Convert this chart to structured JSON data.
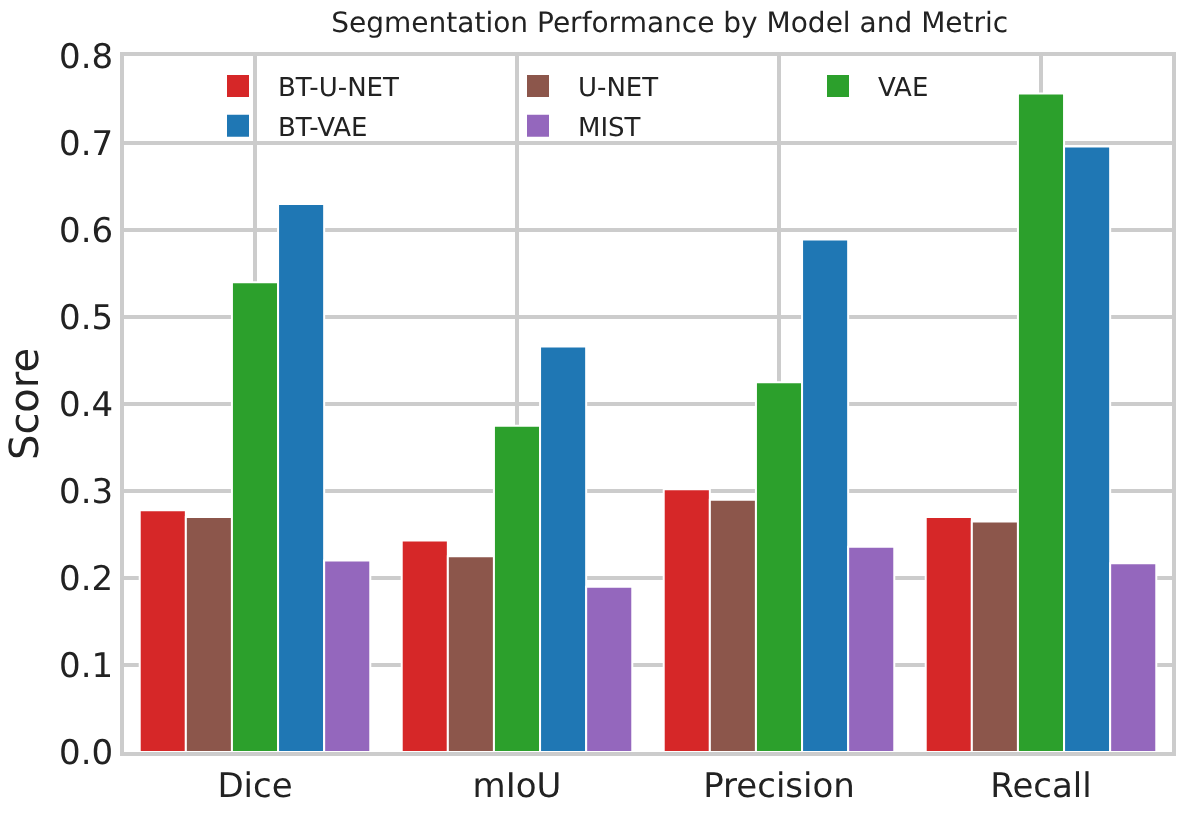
{
  "chart_data": {
    "type": "bar",
    "title": "Segmentation Performance by Model and Metric",
    "ylabel": "Score",
    "categories": [
      "Dice",
      "mIoU",
      "Precision",
      "Recall"
    ],
    "series": [
      {
        "name": "BT-U-NET",
        "color": "#d62728",
        "values": [
          0.278,
          0.243,
          0.302,
          0.27
        ]
      },
      {
        "name": "U-NET",
        "color": "#8c564b",
        "values": [
          0.27,
          0.225,
          0.29,
          0.265
        ]
      },
      {
        "name": "VAE",
        "color": "#2ca02c",
        "values": [
          0.54,
          0.375,
          0.425,
          0.757
        ]
      },
      {
        "name": "BT-VAE",
        "color": "#1f77b4",
        "values": [
          0.63,
          0.466,
          0.589,
          0.696
        ]
      },
      {
        "name": "MIST",
        "color": "#9467bd",
        "values": [
          0.22,
          0.19,
          0.236,
          0.217
        ]
      }
    ],
    "ylim": [
      0,
      0.8
    ],
    "yticks": [
      {
        "value": 0,
        "label": "0.0"
      },
      0.1,
      0.2,
      0.3,
      0.4,
      0.5,
      0.6,
      0.7,
      0.8
    ],
    "grid": true,
    "legend": "top"
  }
}
